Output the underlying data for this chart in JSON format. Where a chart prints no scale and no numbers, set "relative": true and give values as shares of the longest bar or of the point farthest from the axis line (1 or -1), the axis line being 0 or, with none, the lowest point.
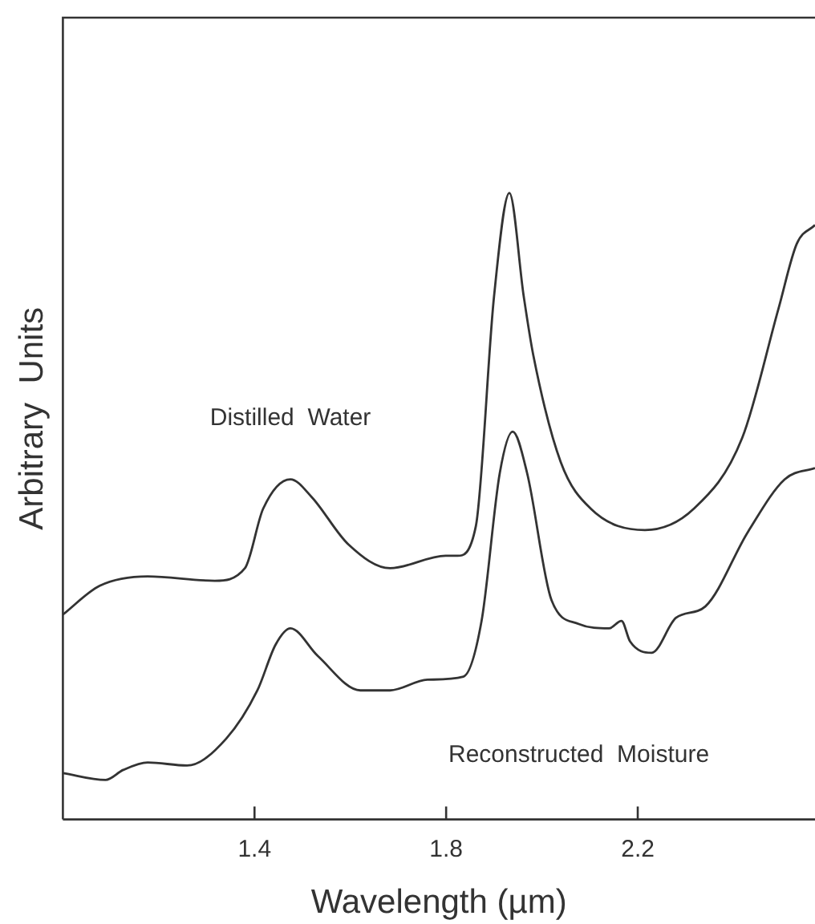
{
  "chart_data": {
    "type": "line",
    "xlabel": "Wavelength (µm)",
    "ylabel": "Arbitrary  Units",
    "relative": true,
    "xlim": [
      1.0,
      2.57
    ],
    "xticks": [
      1.4,
      1.8,
      2.2
    ],
    "grid": false,
    "legend": false,
    "marker": "none",
    "line_style": "solid",
    "series": [
      {
        "name": "Distilled  Water",
        "color": "#333333",
        "x": [
          1.0,
          1.077,
          1.177,
          1.317,
          1.38,
          1.418,
          1.475,
          1.519,
          1.596,
          1.683,
          1.799,
          1.824,
          1.862,
          1.9,
          1.932,
          1.962,
          1.982,
          2.039,
          2.102,
          2.215,
          2.317,
          2.418,
          2.494,
          2.532,
          2.57
        ],
        "values": [
          0.327,
          0.373,
          0.388,
          0.381,
          0.401,
          0.496,
          0.543,
          0.515,
          0.439,
          0.401,
          0.421,
          0.421,
          0.468,
          0.835,
          1.0,
          0.835,
          0.741,
          0.571,
          0.496,
          0.462,
          0.496,
          0.609,
          0.816,
          0.919,
          0.949
        ]
      },
      {
        "name": "Reconstructed  Moisture",
        "color": "#333333",
        "x": [
          1.0,
          1.089,
          1.126,
          1.177,
          1.259,
          1.341,
          1.406,
          1.444,
          1.475,
          1.532,
          1.621,
          1.683,
          1.761,
          1.836,
          1.874,
          1.912,
          1.939,
          1.969,
          2.02,
          2.077,
          2.14,
          2.166,
          2.184,
          2.229,
          2.28,
          2.341,
          2.43,
          2.507,
          2.57
        ],
        "values": [
          0.074,
          0.063,
          0.079,
          0.091,
          0.086,
          0.129,
          0.206,
          0.279,
          0.305,
          0.261,
          0.206,
          0.206,
          0.223,
          0.228,
          0.317,
          0.553,
          0.619,
          0.553,
          0.35,
          0.312,
          0.305,
          0.317,
          0.284,
          0.266,
          0.322,
          0.34,
          0.459,
          0.543,
          0.561
        ]
      }
    ]
  }
}
